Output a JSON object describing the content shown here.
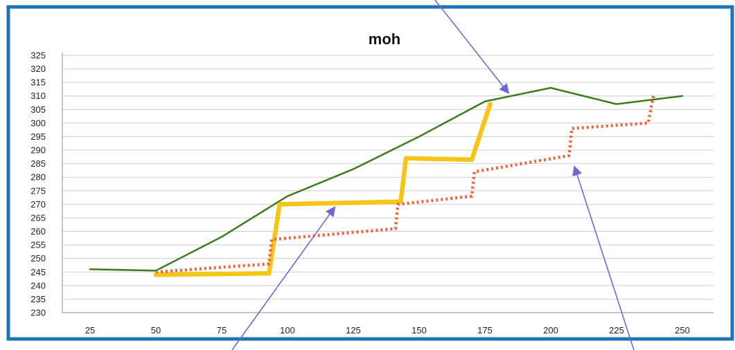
{
  "chart_data": {
    "type": "line",
    "title": "moh",
    "xlabel": "",
    "ylabel": "",
    "ylim": [
      230,
      325
    ],
    "y_ticks": [
      "230",
      "235",
      "240",
      "245",
      "250",
      "255",
      "260",
      "265",
      "270",
      "275",
      "280",
      "285",
      "290",
      "295",
      "300",
      "305",
      "310",
      "315",
      "320",
      "325"
    ],
    "x_ticks": [
      "25",
      "50",
      "75",
      "100",
      "125",
      "150",
      "175",
      "200",
      "225",
      "250"
    ],
    "grid": "horizontal",
    "legend": "none",
    "series": [
      {
        "color": "#3d7a1e",
        "style": "solid",
        "points": [
          [
            25,
            246
          ],
          [
            50,
            245.5
          ],
          [
            75,
            258
          ],
          [
            100,
            273
          ],
          [
            125,
            283
          ],
          [
            150,
            295
          ],
          [
            175,
            308
          ],
          [
            200,
            313
          ],
          [
            225,
            307
          ],
          [
            250,
            310
          ]
        ]
      },
      {
        "color": "#f5c518",
        "style": "solid-thick",
        "points": [
          [
            50,
            244
          ],
          [
            93,
            244.5
          ],
          [
            97,
            270
          ],
          [
            143,
            271
          ],
          [
            145,
            287
          ],
          [
            170,
            286.5
          ],
          [
            177,
            307
          ]
        ]
      },
      {
        "color": "#f0643c",
        "style": "dotted",
        "points": [
          [
            50,
            245
          ],
          [
            93,
            248
          ],
          [
            94,
            257
          ],
          [
            141,
            261
          ],
          [
            142,
            270
          ],
          [
            170,
            273
          ],
          [
            171,
            282
          ],
          [
            207,
            288
          ],
          [
            208,
            298
          ],
          [
            237,
            300
          ],
          [
            239,
            310
          ]
        ]
      }
    ],
    "annotations": [
      {
        "type": "arrow",
        "color": "#6a6ad0",
        "target": [
          184,
          311
        ]
      },
      {
        "type": "arrow",
        "color": "#6a6ad0",
        "target": [
          118,
          269
        ]
      },
      {
        "type": "arrow",
        "color": "#6a6ad0",
        "target": [
          209,
          284
        ]
      }
    ]
  }
}
